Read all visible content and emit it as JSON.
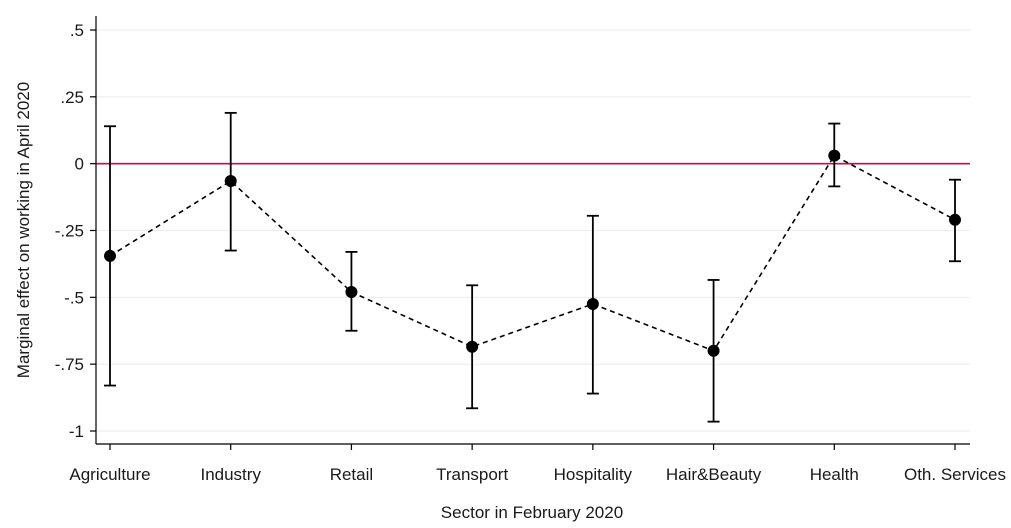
{
  "chart_data": {
    "type": "scatter",
    "style": "point estimates with 95% confidence interval whiskers, connected by dashed line",
    "xlabel": "Sector in February 2020",
    "ylabel": "Marginal effect on working in April 2020",
    "categories": [
      "Agriculture",
      "Industry",
      "Retail",
      "Transport",
      "Hospitality",
      "Hair&Beauty",
      "Health",
      "Oth. Services"
    ],
    "estimates": [
      -0.345,
      -0.065,
      -0.48,
      -0.685,
      -0.525,
      -0.7,
      0.03,
      -0.21
    ],
    "ci_lower": [
      -0.83,
      -0.325,
      -0.625,
      -0.915,
      -0.86,
      -0.965,
      -0.085,
      -0.365
    ],
    "ci_upper": [
      0.14,
      0.19,
      -0.33,
      -0.455,
      -0.195,
      -0.435,
      0.15,
      -0.06
    ],
    "ylim": [
      -1.05,
      0.55
    ],
    "yticks": [
      0.5,
      0.25,
      0,
      -0.25,
      -0.5,
      -0.75,
      -1
    ],
    "ytick_labels": [
      ".5",
      ".25",
      "0",
      "-.25",
      "-.5",
      "-.75",
      "-1"
    ],
    "reference_line": {
      "y": 0,
      "color": "#b5184e"
    },
    "grid": true,
    "colors": {
      "points": "#000000",
      "line": "#000000",
      "grid": "#e6eef2",
      "reference": "#b5184e"
    }
  }
}
